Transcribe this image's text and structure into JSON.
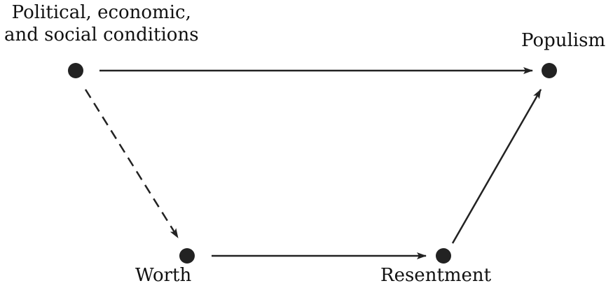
{
  "nodes": {
    "conditions": {
      "line1": "Political, economic,",
      "line2": "and social conditions"
    },
    "populism": {
      "label": "Populism"
    },
    "worth": {
      "label": "Worth"
    },
    "resentment": {
      "label": "Resentment"
    }
  },
  "edges": [
    {
      "from": "conditions",
      "to": "populism",
      "style": "solid"
    },
    {
      "from": "conditions",
      "to": "worth",
      "style": "dashed"
    },
    {
      "from": "worth",
      "to": "resentment",
      "style": "solid"
    },
    {
      "from": "resentment",
      "to": "populism",
      "style": "solid"
    }
  ],
  "colors": {
    "ink": "#222222"
  }
}
